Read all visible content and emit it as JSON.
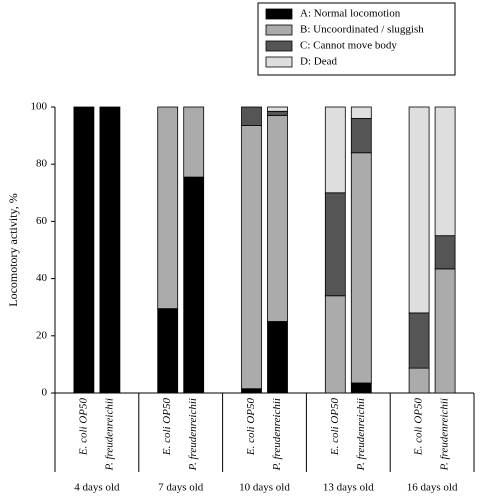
{
  "chart_data": {
    "type": "stacked_bar",
    "y_label": "Locomotory activity, %",
    "categories": [
      "E. coli OP50",
      "P. freudenreichii",
      "E. coli OP50",
      "P. freudenreichii",
      "E. coli OP50",
      "P. freudenreichii",
      "E. coli OP50",
      "P. freudenreichii",
      "E. coli OP50",
      "P. freudenreichii"
    ],
    "group_labels": [
      "4 days old",
      "7 days old",
      "10 days old",
      "13 days old",
      "16 days old"
    ],
    "series": [
      {
        "name": "A: Normal locomotion",
        "color": "#000000",
        "values": [
          100,
          100,
          29.5,
          75.5,
          1.5,
          25,
          0,
          3.5,
          0,
          0
        ]
      },
      {
        "name": "B: Uncoordinated / sluggish",
        "color": "#ababab",
        "values": [
          0,
          0,
          70.5,
          24.5,
          92,
          72,
          34,
          80.5,
          8.7,
          43.4
        ]
      },
      {
        "name": "C: Cannot move body",
        "color": "#555555",
        "values": [
          0,
          0,
          0,
          0,
          6.5,
          1.5,
          36,
          12,
          19.3,
          11.6
        ]
      },
      {
        "name": "D: Dead",
        "color": "#dedede",
        "values": [
          0,
          0,
          0,
          0,
          0,
          1.5,
          30,
          4,
          72,
          45
        ]
      }
    ],
    "ylim": [
      0,
      100
    ],
    "yticks": [
      0,
      20,
      40,
      60,
      80,
      100
    ]
  }
}
